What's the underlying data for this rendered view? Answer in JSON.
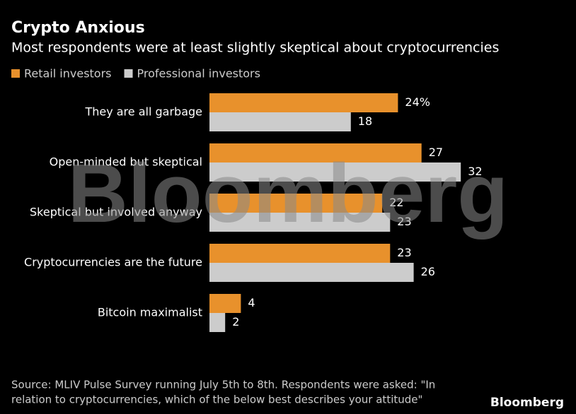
{
  "chart_data": {
    "type": "bar",
    "orientation": "horizontal",
    "title": "Crypto Anxious",
    "subtitle": "Most respondents were at least slightly skeptical about cryptocurrencies",
    "categories": [
      "They are all garbage",
      "Open-minded but skeptical",
      "Skeptical but involved anyway",
      "Cryptocurrencies are the future",
      "Bitcoin maximalist"
    ],
    "series": [
      {
        "name": "Retail investors",
        "color": "#e8912c",
        "values": [
          24,
          27,
          22,
          23,
          4
        ],
        "value_labels": [
          "24%",
          "27",
          "22",
          "23",
          "4"
        ]
      },
      {
        "name": "Professional investors",
        "color": "#cccccc",
        "values": [
          18,
          32,
          23,
          26,
          2
        ]
      }
    ],
    "source": [
      "Source: MLIV Pulse Survey running July 5th to 8th. Respondents were asked: \"In",
      "relation to cryptocurrencies, which of the below best describes your attitude\""
    ],
    "watermark": "Bloomberg",
    "logo": "Bloomberg"
  }
}
